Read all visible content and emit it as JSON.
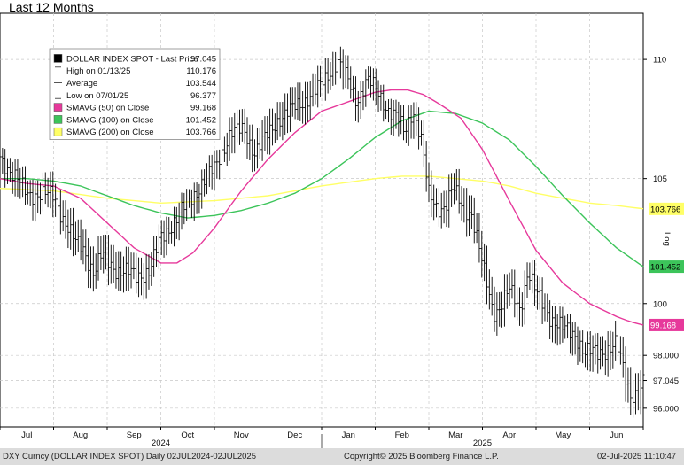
{
  "page_title": "Last 12 Months",
  "chart_data": {
    "type": "line",
    "title": "Last 12 Months",
    "security": "DOLLAR INDEX SPOT",
    "y_scale": "log",
    "y_scale_label": "Log",
    "ylim": [
      95.3,
      112
    ],
    "y_ticks": [
      "110",
      "105",
      "100",
      "98.000",
      "97.045",
      "96.000"
    ],
    "y_tick_values": [
      110,
      105,
      100,
      98,
      97.045,
      96
    ],
    "x_month_labels": [
      "Jul",
      "Aug",
      "Sep",
      "Oct",
      "Nov",
      "Dec",
      "Jan",
      "Feb",
      "Mar",
      "Apr",
      "May",
      "Jun"
    ],
    "x_month_positions": [
      0.5,
      1.5,
      2.5,
      3.5,
      4.5,
      5.5,
      6.5,
      7.5,
      8.5,
      9.5,
      10.5,
      11.5
    ],
    "x_year_labels": [
      {
        "label": "2024",
        "position": 3
      },
      {
        "label": "2025",
        "position": 9
      }
    ],
    "x_range_months": [
      0,
      12
    ],
    "grid": true,
    "legend": {
      "placement": "top-left",
      "entries": [
        {
          "label": "DOLLAR INDEX SPOT - Last Price",
          "value": "97.045",
          "symbol": "square",
          "color": "#000000"
        },
        {
          "label": "High on 01/13/25",
          "value": "110.176",
          "symbol": "high",
          "color": "#555555"
        },
        {
          "label": "Average",
          "value": "103.544",
          "symbol": "avg",
          "color": "#555555"
        },
        {
          "label": "Low on 07/01/25",
          "value": "96.377",
          "symbol": "low",
          "color": "#555555"
        },
        {
          "label": "SMAVG (50)  on Close",
          "value": "99.168",
          "symbol": "square",
          "color": "#e6399b"
        },
        {
          "label": "SMAVG (100)  on Close",
          "value": "101.452",
          "symbol": "square",
          "color": "#3cc45a"
        },
        {
          "label": "SMAVG (200)  on Close",
          "value": "103.766",
          "symbol": "square",
          "color": "#ffff66"
        }
      ]
    },
    "series": [
      {
        "name": "DOLLAR INDEX SPOT - Last Price",
        "color": "#000000",
        "style": "ohlc",
        "x": [
          0.0,
          0.5,
          1.0,
          1.2,
          1.4,
          1.55,
          1.75,
          1.9,
          2.2,
          2.55,
          2.8,
          3.0,
          3.3,
          3.6,
          3.8,
          4.0,
          4.3,
          4.55,
          4.75,
          5.0,
          5.2,
          5.6,
          6.0,
          6.3,
          6.5,
          6.65,
          6.85,
          7.0,
          7.2,
          7.4,
          7.55,
          7.7,
          7.85,
          8.0,
          8.15,
          8.3,
          8.45,
          8.6,
          8.8,
          9.0,
          9.2,
          9.3,
          9.5,
          9.7,
          9.85,
          10.0,
          10.3,
          10.5,
          10.75,
          10.9,
          11.15,
          11.5,
          11.75,
          11.9,
          12.0
        ],
        "values": [
          105.9,
          104.4,
          104.3,
          103.3,
          102.4,
          102.2,
          101.2,
          101.9,
          101.3,
          101.1,
          101.3,
          102.6,
          103.4,
          104.3,
          104.9,
          105.4,
          106.9,
          107.0,
          106.1,
          106.8,
          107.5,
          108.1,
          108.9,
          110.0,
          109.0,
          108.2,
          109.2,
          108.7,
          108.0,
          107.6,
          106.8,
          107.9,
          106.8,
          104.3,
          103.8,
          103.9,
          104.6,
          103.9,
          103.6,
          101.5,
          99.7,
          99.8,
          100.5,
          99.8,
          101.3,
          100.4,
          99.4,
          99.0,
          98.8,
          98.1,
          98.1,
          98.4,
          96.6,
          96.5,
          96.9
        ]
      },
      {
        "name": "SMAVG (50)  on Close",
        "color": "#e6399b",
        "x": [
          0.0,
          0.5,
          1.0,
          1.5,
          2.0,
          2.5,
          3.0,
          3.3,
          3.6,
          4.0,
          4.5,
          5.0,
          5.5,
          6.0,
          6.5,
          7.0,
          7.3,
          7.6,
          7.9,
          8.2,
          8.6,
          9.0,
          9.5,
          10.0,
          10.5,
          11.0,
          11.5,
          11.75,
          12.0
        ],
        "values": [
          105.0,
          104.8,
          104.7,
          104.2,
          103.2,
          102.2,
          101.6,
          101.6,
          102.0,
          103.0,
          104.5,
          105.8,
          106.9,
          107.8,
          108.2,
          108.6,
          108.7,
          108.7,
          108.5,
          108.1,
          107.5,
          106.2,
          104.1,
          102.1,
          100.8,
          100.0,
          99.5,
          99.3,
          99.17
        ]
      },
      {
        "name": "SMAVG (100)  on Close",
        "color": "#3cc45a",
        "x": [
          0.0,
          0.5,
          1.0,
          1.5,
          2.0,
          2.5,
          3.0,
          3.5,
          4.0,
          4.5,
          5.0,
          5.5,
          6.0,
          6.5,
          7.0,
          7.5,
          8.0,
          8.5,
          9.0,
          9.5,
          10.0,
          10.5,
          11.0,
          11.5,
          12.0
        ],
        "values": [
          105.0,
          105.0,
          104.9,
          104.7,
          104.3,
          103.9,
          103.6,
          103.4,
          103.5,
          103.7,
          104.0,
          104.4,
          105.0,
          105.8,
          106.7,
          107.4,
          107.8,
          107.7,
          107.3,
          106.6,
          105.5,
          104.3,
          103.2,
          102.2,
          101.45
        ]
      },
      {
        "name": "SMAVG (200)  on Close",
        "color": "#ffff66",
        "x": [
          0.0,
          1.0,
          2.0,
          3.0,
          4.0,
          5.0,
          6.0,
          7.0,
          7.5,
          8.0,
          8.5,
          9.0,
          9.5,
          10.0,
          10.5,
          11.0,
          11.5,
          12.0
        ],
        "values": [
          104.6,
          104.5,
          104.2,
          104.0,
          104.1,
          104.3,
          104.7,
          105.0,
          105.1,
          105.1,
          105.0,
          104.9,
          104.7,
          104.4,
          104.2,
          104.0,
          103.9,
          103.77
        ]
      }
    ],
    "right_axis_markers": [
      {
        "value": 103.766,
        "label": "103.766",
        "bg": "#ffff66",
        "fg": "#000000"
      },
      {
        "value": 101.452,
        "label": "101.452",
        "bg": "#3cc45a",
        "fg": "#000000"
      },
      {
        "value": 99.168,
        "label": "99.168",
        "bg": "#e6399b",
        "fg": "#ffffff"
      }
    ]
  },
  "footer": {
    "left": "DXY Curncy (DOLLAR INDEX SPOT)  Daily 02JUL2024-02JUL2025",
    "center": "Copyright© 2025 Bloomberg Finance L.P.",
    "right": "02-Jul-2025 11:10:47"
  }
}
